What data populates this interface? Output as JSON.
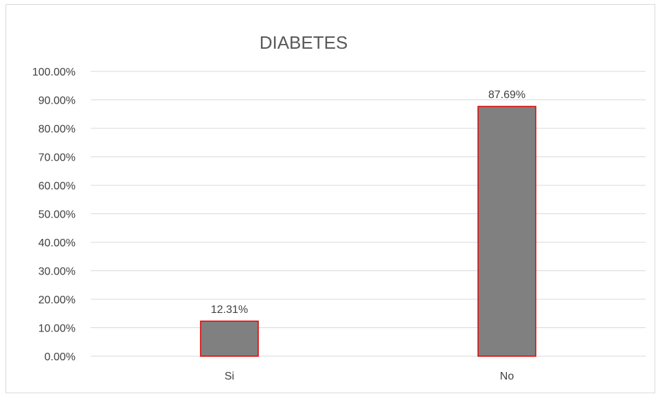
{
  "chart_data": {
    "type": "bar",
    "title": "DIABETES",
    "categories": [
      "Si",
      "No"
    ],
    "values": [
      12.31,
      87.69
    ],
    "value_labels": [
      "12.31%",
      "87.69%"
    ],
    "ylim": [
      0,
      100
    ],
    "yticks": [
      0,
      10,
      20,
      30,
      40,
      50,
      60,
      70,
      80,
      90,
      100
    ],
    "ytick_labels": [
      "0.00%",
      "10.00%",
      "20.00%",
      "30.00%",
      "40.00%",
      "50.00%",
      "60.00%",
      "70.00%",
      "80.00%",
      "90.00%",
      "100.00%"
    ],
    "grid": true,
    "legend": false,
    "colors": {
      "bar_fill": "#808080",
      "bar_border": "#e00000",
      "grid": "#d9d9d9",
      "text": "#404040"
    }
  }
}
